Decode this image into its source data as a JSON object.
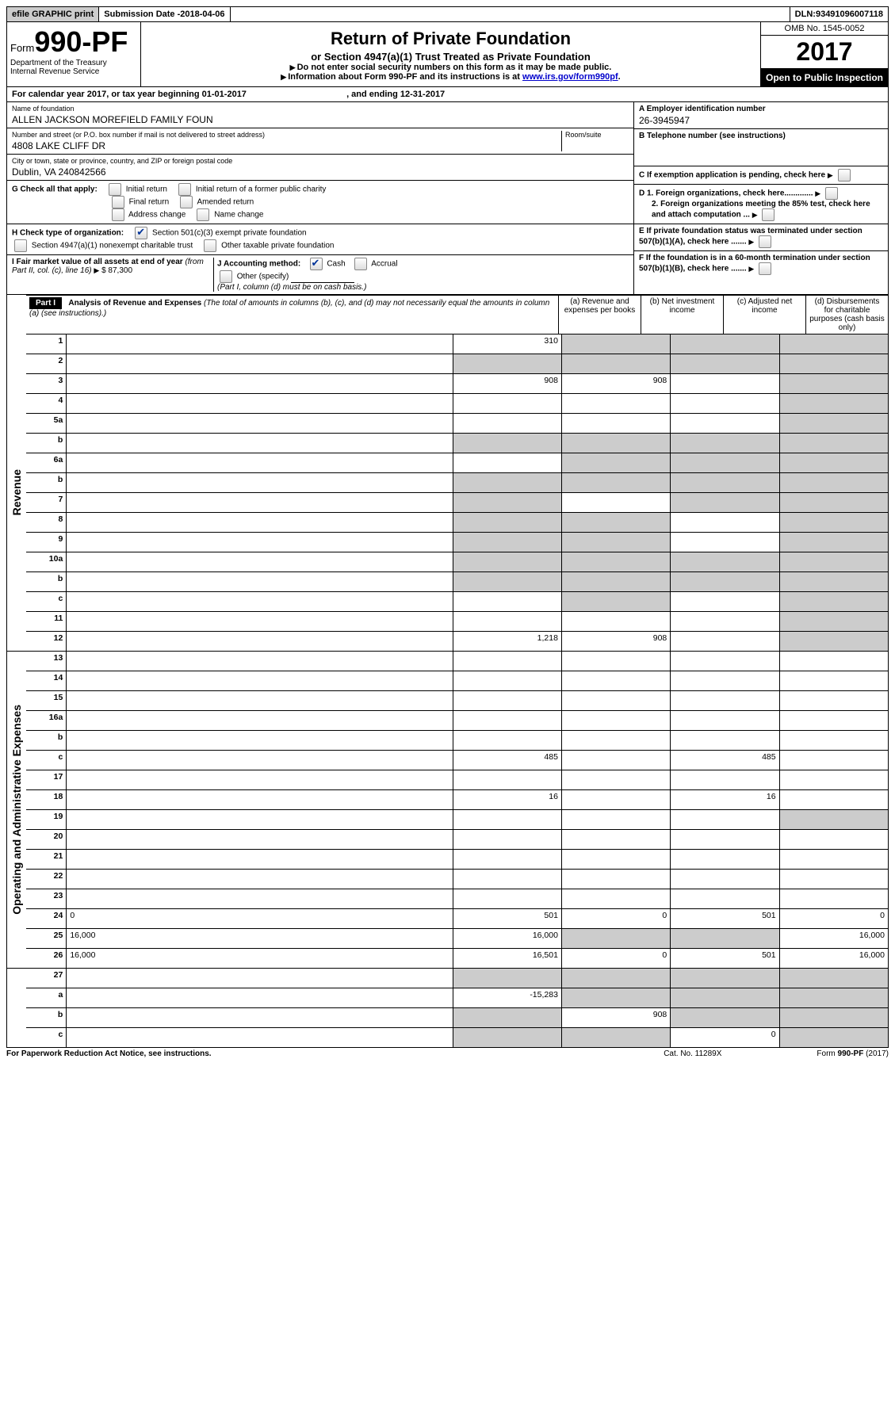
{
  "topbar": {
    "efile": "efile GRAPHIC print",
    "submission_label": "Submission Date - ",
    "submission_date": "2018-04-06",
    "dln_label": "DLN: ",
    "dln": "93491096007118"
  },
  "header": {
    "form_prefix": "Form",
    "form_number": "990-PF",
    "dept1": "Department of the Treasury",
    "dept2": "Internal Revenue Service",
    "title": "Return of Private Foundation",
    "subtitle": "or Section 4947(a)(1) Trust Treated as Private Foundation",
    "note1": "Do not enter social security numbers on this form as it may be made public.",
    "note2_a": "Information about Form 990-PF and its instructions is at ",
    "note2_link": "www.irs.gov/form990pf",
    "note2_b": ".",
    "omb": "OMB No. 1545-0052",
    "year": "2017",
    "inspection": "Open to Public Inspection"
  },
  "calendar": {
    "text_a": "For calendar year 2017, or tax year beginning ",
    "begin": "01-01-2017",
    "text_b": ", and ending ",
    "end": "12-31-2017"
  },
  "entity": {
    "name_label": "Name of foundation",
    "name": "ALLEN JACKSON MOREFIELD FAMILY FOUN",
    "addr_label": "Number and street (or P.O. box number if mail is not delivered to street address)",
    "room_label": "Room/suite",
    "addr": "4808 LAKE CLIFF DR",
    "city_label": "City or town, state or province, country, and ZIP or foreign postal code",
    "city": "Dublin, VA  240842566",
    "ein_label": "A Employer identification number",
    "ein": "26-3945947",
    "phone_label": "B Telephone number (see instructions)",
    "exemption_label": "C If exemption application is pending, check here"
  },
  "checks": {
    "g_label": "G Check all that apply:",
    "g_opts": [
      "Initial return",
      "Initial return of a former public charity",
      "Final return",
      "Amended return",
      "Address change",
      "Name change"
    ],
    "h_label": "H Check type of organization:",
    "h_opt1": "Section 501(c)(3) exempt private foundation",
    "h_opt2": "Section 4947(a)(1) nonexempt charitable trust",
    "h_opt3": "Other taxable private foundation",
    "i_label_a": "I Fair market value of all assets at end of year ",
    "i_label_b": "(from Part II, col. (c), line 16)",
    "i_amount": "$  87,300",
    "j_label": "J Accounting method:",
    "j_cash": "Cash",
    "j_accrual": "Accrual",
    "j_other": "Other (specify)",
    "j_note": "(Part I, column (d) must be on cash basis.)",
    "d1": "D 1. Foreign organizations, check here.............",
    "d2": "2. Foreign organizations meeting the 85% test, check here and attach computation ...",
    "e": "E  If private foundation status was terminated under section 507(b)(1)(A), check here .......",
    "f": "F  If the foundation is in a 60-month termination under section 507(b)(1)(B), check here ......."
  },
  "part1": {
    "label": "Part I",
    "title": "Analysis of Revenue and Expenses",
    "note": " (The total of amounts in columns (b), (c), and (d) may not necessarily equal the amounts in column (a) (see instructions).)",
    "col_a": "(a)   Revenue and expenses per books",
    "col_b": "(b)  Net investment income",
    "col_c": "(c)  Adjusted net income",
    "col_d": "(d)  Disbursements for charitable purposes (cash basis only)",
    "side_rev": "Revenue",
    "side_exp": "Operating and Administrative Expenses"
  },
  "rows": [
    {
      "n": "1",
      "d": "",
      "a": "310",
      "b": "",
      "c": "",
      "sh": [
        "",
        "c",
        "c",
        "c"
      ]
    },
    {
      "n": "2",
      "d": "",
      "a": "",
      "b": "",
      "c": "",
      "sh": [
        "c",
        "c",
        "c",
        "c"
      ]
    },
    {
      "n": "3",
      "d": "",
      "a": "908",
      "b": "908",
      "c": "",
      "sh": [
        "",
        "",
        "",
        "c"
      ]
    },
    {
      "n": "4",
      "d": "",
      "a": "",
      "b": "",
      "c": "",
      "sh": [
        "",
        "",
        "",
        "c"
      ]
    },
    {
      "n": "5a",
      "d": "",
      "a": "",
      "b": "",
      "c": "",
      "sh": [
        "",
        "",
        "",
        "c"
      ]
    },
    {
      "n": "b",
      "d": "",
      "a": "",
      "b": "",
      "c": "",
      "sh": [
        "c",
        "c",
        "c",
        "c"
      ]
    },
    {
      "n": "6a",
      "d": "",
      "a": "",
      "b": "",
      "c": "",
      "sh": [
        "",
        "c",
        "c",
        "c"
      ]
    },
    {
      "n": "b",
      "d": "",
      "a": "",
      "b": "",
      "c": "",
      "sh": [
        "c",
        "c",
        "c",
        "c"
      ]
    },
    {
      "n": "7",
      "d": "",
      "a": "",
      "b": "",
      "c": "",
      "sh": [
        "c",
        "",
        "c",
        "c"
      ]
    },
    {
      "n": "8",
      "d": "",
      "a": "",
      "b": "",
      "c": "",
      "sh": [
        "c",
        "c",
        "",
        "c"
      ]
    },
    {
      "n": "9",
      "d": "",
      "a": "",
      "b": "",
      "c": "",
      "sh": [
        "c",
        "c",
        "",
        "c"
      ]
    },
    {
      "n": "10a",
      "d": "",
      "a": "",
      "b": "",
      "c": "",
      "sh": [
        "c",
        "c",
        "c",
        "c"
      ]
    },
    {
      "n": "b",
      "d": "",
      "a": "",
      "b": "",
      "c": "",
      "sh": [
        "c",
        "c",
        "c",
        "c"
      ]
    },
    {
      "n": "c",
      "d": "",
      "a": "",
      "b": "",
      "c": "",
      "sh": [
        "",
        "c",
        "",
        "c"
      ]
    },
    {
      "n": "11",
      "d": "",
      "a": "",
      "b": "",
      "c": "",
      "sh": [
        "",
        "",
        "",
        "c"
      ]
    },
    {
      "n": "12",
      "d": "",
      "a": "1,218",
      "b": "908",
      "c": "",
      "sh": [
        "",
        "",
        "",
        "c"
      ]
    },
    {
      "n": "13",
      "d": "",
      "a": "",
      "b": "",
      "c": "",
      "sh": [
        "",
        "",
        "",
        ""
      ]
    },
    {
      "n": "14",
      "d": "",
      "a": "",
      "b": "",
      "c": "",
      "sh": [
        "",
        "",
        "",
        ""
      ]
    },
    {
      "n": "15",
      "d": "",
      "a": "",
      "b": "",
      "c": "",
      "sh": [
        "",
        "",
        "",
        ""
      ]
    },
    {
      "n": "16a",
      "d": "",
      "a": "",
      "b": "",
      "c": "",
      "sh": [
        "",
        "",
        "",
        ""
      ]
    },
    {
      "n": "b",
      "d": "",
      "a": "",
      "b": "",
      "c": "",
      "sh": [
        "",
        "",
        "",
        ""
      ]
    },
    {
      "n": "c",
      "d": "",
      "a": "485",
      "b": "",
      "c": "485",
      "sh": [
        "",
        "",
        "",
        ""
      ]
    },
    {
      "n": "17",
      "d": "",
      "a": "",
      "b": "",
      "c": "",
      "sh": [
        "",
        "",
        "",
        ""
      ]
    },
    {
      "n": "18",
      "d": "",
      "a": "16",
      "b": "",
      "c": "16",
      "sh": [
        "",
        "",
        "",
        ""
      ]
    },
    {
      "n": "19",
      "d": "",
      "a": "",
      "b": "",
      "c": "",
      "sh": [
        "",
        "",
        "",
        "c"
      ]
    },
    {
      "n": "20",
      "d": "",
      "a": "",
      "b": "",
      "c": "",
      "sh": [
        "",
        "",
        "",
        ""
      ]
    },
    {
      "n": "21",
      "d": "",
      "a": "",
      "b": "",
      "c": "",
      "sh": [
        "",
        "",
        "",
        ""
      ]
    },
    {
      "n": "22",
      "d": "",
      "a": "",
      "b": "",
      "c": "",
      "sh": [
        "",
        "",
        "",
        ""
      ]
    },
    {
      "n": "23",
      "d": "",
      "a": "",
      "b": "",
      "c": "",
      "sh": [
        "",
        "",
        "",
        ""
      ]
    },
    {
      "n": "24",
      "d": "0",
      "a": "501",
      "b": "0",
      "c": "501",
      "sh": [
        "",
        "",
        "",
        ""
      ]
    },
    {
      "n": "25",
      "d": "16,000",
      "a": "16,000",
      "b": "",
      "c": "",
      "sh": [
        "",
        "c",
        "c",
        ""
      ]
    },
    {
      "n": "26",
      "d": "16,000",
      "a": "16,501",
      "b": "0",
      "c": "501",
      "sh": [
        "",
        "",
        "",
        ""
      ]
    },
    {
      "n": "27",
      "d": "",
      "a": "",
      "b": "",
      "c": "",
      "sh": [
        "c",
        "c",
        "c",
        "c"
      ]
    },
    {
      "n": "a",
      "d": "",
      "a": "-15,283",
      "b": "",
      "c": "",
      "sh": [
        "",
        "c",
        "c",
        "c"
      ]
    },
    {
      "n": "b",
      "d": "",
      "a": "",
      "b": "908",
      "c": "",
      "sh": [
        "c",
        "",
        "c",
        "c"
      ]
    },
    {
      "n": "c",
      "d": "",
      "a": "",
      "b": "",
      "c": "0",
      "sh": [
        "c",
        "c",
        "",
        "c"
      ]
    }
  ],
  "footer": {
    "left": "For Paperwork Reduction Act Notice, see instructions.",
    "mid": "Cat. No. 11289X",
    "right": "Form 990-PF (2017)"
  }
}
